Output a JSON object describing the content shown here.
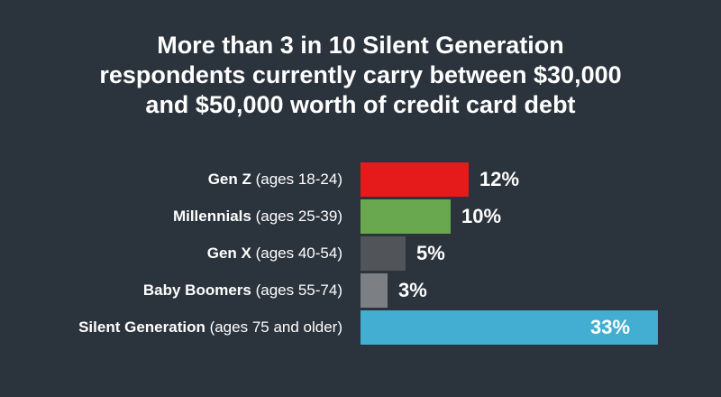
{
  "title_lines": [
    "More than 3 in 10 Silent Generation",
    "respondents currently carry between $30,000",
    "and $50,000 worth of credit card debt"
  ],
  "chart_data": {
    "type": "bar",
    "orientation": "horizontal",
    "title": "More than 3 in 10 Silent Generation respondents currently carry between $30,000 and $50,000 worth of credit card debt",
    "categories": [
      "Gen Z",
      "Millennials",
      "Gen X",
      "Baby Boomers",
      "Silent Generation"
    ],
    "age_labels": [
      "(ages 18-24)",
      "(ages 25-39)",
      "(ages 40-54)",
      "(ages 55-74)",
      "(ages 75 and older)"
    ],
    "values": [
      12,
      10,
      5,
      3,
      33
    ],
    "value_labels": [
      "12%",
      "10%",
      "5%",
      "3%",
      "33%"
    ],
    "colors": [
      "#e51b1b",
      "#6aa84f",
      "#515559",
      "#7c8085",
      "#43aed1"
    ],
    "xlim": [
      0,
      36
    ],
    "xlabel": "",
    "ylabel": "",
    "grid": false,
    "legend": "none"
  }
}
